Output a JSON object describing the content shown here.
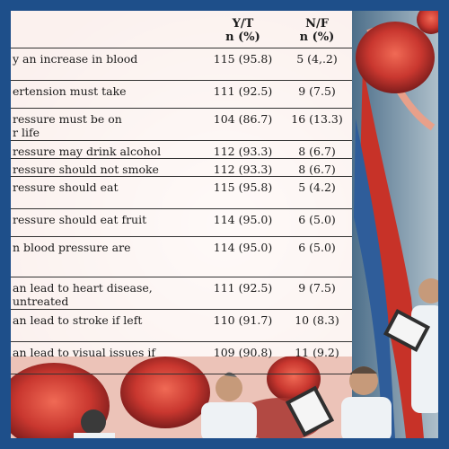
{
  "table": {
    "headers": {
      "yes_top": "Y/T",
      "yes_bottom": "n (%)",
      "no_top": "N/F",
      "no_bottom": "n (%)"
    },
    "rows": [
      {
        "statement": "y an increase in blood",
        "yes": "115 (95.8)",
        "no": "5 (4,.2)"
      },
      {
        "statement": "ertension must take",
        "yes": "111 (92.5)",
        "no": "9 (7.5)"
      },
      {
        "statement": "ressure must be on",
        "statement_line2": "r life",
        "yes": "104 (86.7)",
        "no": "16 (13.3)"
      },
      {
        "statement": "ressure may drink alcohol",
        "yes": "112 (93.3)",
        "no": "8 (6.7)"
      },
      {
        "statement": "ressure should not smoke",
        "yes": "112 (93.3)",
        "no": "8 (6.7)"
      },
      {
        "statement": "ressure should eat",
        "yes": "115 (95.8)",
        "no": "5 (4.2)"
      },
      {
        "statement": "ressure should eat fruit",
        "yes": "114 (95.0)",
        "no": "6 (5.0)"
      },
      {
        "statement": "n blood pressure are",
        "yes": "114 (95.0)",
        "no": "6 (5.0)"
      },
      {
        "statement": "an lead to heart disease,",
        "statement_line2": "untreated",
        "yes": "111 (92.5)",
        "no": "9 (7.5)"
      },
      {
        "statement": "an lead to stroke if left",
        "yes": "110 (91.7)",
        "no": "10 (8.3)"
      },
      {
        "statement": "an lead to visual issues if",
        "yes": "109 (90.8)",
        "no": "11 (9.2)"
      }
    ]
  },
  "colors": {
    "frame": "#1e4f8a",
    "tissue_red": "#c9372f",
    "tissue_pink": "#f3cfc6",
    "vein_blue": "#2f5d9a",
    "coat_white": "#eef2f5"
  },
  "icons": {
    "background": "medical-illustration",
    "clipboard": "clipboard-icon"
  }
}
